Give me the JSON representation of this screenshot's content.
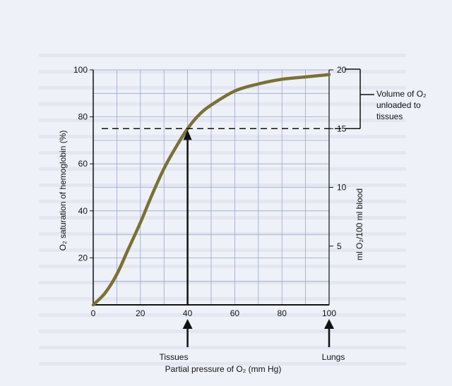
{
  "chart_data": {
    "type": "line",
    "x": [
      0,
      5,
      10,
      15,
      20,
      25,
      30,
      35,
      40,
      45,
      50,
      60,
      70,
      80,
      90,
      100
    ],
    "series": [
      {
        "values": [
          0,
          5,
          13,
          24,
          35,
          47,
          58,
          67,
          75,
          81,
          85,
          91,
          94,
          96,
          97,
          98
        ]
      }
    ],
    "xlabel": "Partial pressure of O₂ (mm Hg)",
    "ylabel_left": "O₂ saturation of hemoglobin (%)",
    "ylabel_right": "ml O₂/100 ml blood",
    "xlim": [
      0,
      100
    ],
    "ylim": [
      0,
      100
    ],
    "x_ticks": [
      "0",
      "20",
      "40",
      "60",
      "80",
      "100"
    ],
    "y_ticks_left": [
      "20",
      "40",
      "60",
      "80",
      "100"
    ],
    "y_ticks_right": [
      "5",
      "10",
      "15",
      "20"
    ],
    "grid": true,
    "annotations": {
      "tissues_label": "Tissues",
      "lungs_label": "Lungs",
      "bracket_label_line1": "Volume of O₂",
      "bracket_label_line2": "unloaded to",
      "bracket_label_line3": "tissues",
      "dashed_line_y": 75,
      "tissues_x": 40,
      "lungs_x": 100
    },
    "colors": {
      "curve": "#7b7036",
      "background": "#eef1f8",
      "grid": "#9aa6c8"
    }
  }
}
